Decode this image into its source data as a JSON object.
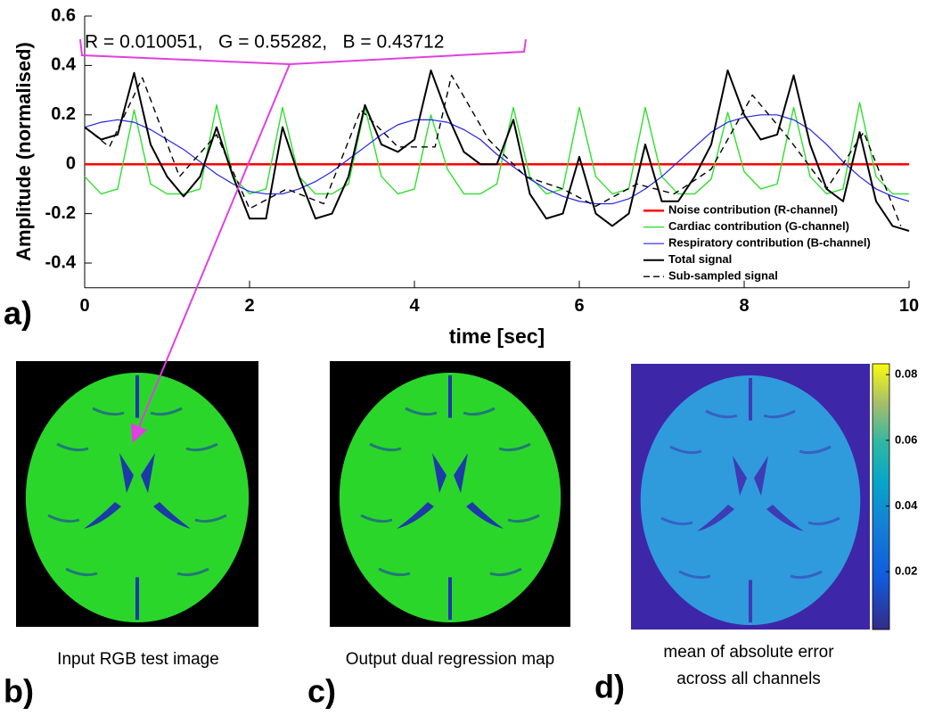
{
  "chart_data": {
    "type": "line",
    "annotation": "R = 0.010051,   G = 0.55282,   B = 0.43712",
    "panel_label": "a)",
    "x_label": "time [sec]",
    "y_label": "Amplitude (normalised)",
    "xlim": [
      0,
      10
    ],
    "xticks": [
      0,
      2,
      4,
      6,
      8,
      10
    ],
    "ylim": [
      -0.5,
      0.6
    ],
    "yticks": [
      -0.4,
      -0.2,
      0,
      0.2,
      0.4,
      0.6
    ],
    "legend": "lower right",
    "x": [
      0,
      0.2,
      0.4,
      0.6,
      0.8,
      1,
      1.2,
      1.4,
      1.6,
      1.8,
      2,
      2.2,
      2.4,
      2.6,
      2.8,
      3,
      3.2,
      3.4,
      3.6,
      3.8,
      4,
      4.2,
      4.4,
      4.6,
      4.8,
      5,
      5.2,
      5.4,
      5.6,
      5.8,
      6,
      6.2,
      6.4,
      6.6,
      6.8,
      7,
      7.2,
      7.4,
      7.6,
      7.8,
      8,
      8.2,
      8.4,
      8.6,
      8.8,
      9,
      9.2,
      9.4,
      9.6,
      9.8,
      10
    ],
    "series": [
      {
        "name": "Noise contribution (R-channel)",
        "color": "#ff0000",
        "width": 2.5,
        "values": [
          0,
          0,
          0,
          0,
          0,
          0,
          0,
          0,
          0,
          0,
          0,
          0,
          0,
          0,
          0,
          0,
          0,
          0,
          0,
          0,
          0,
          0,
          0,
          0,
          0,
          0,
          0,
          0,
          0,
          0,
          0,
          0,
          0,
          0,
          0,
          0,
          0,
          0,
          0,
          0,
          0,
          0,
          0,
          0,
          0,
          0,
          0,
          0,
          0,
          0,
          0
        ]
      },
      {
        "name": "Cardiac contribution (G-channel)",
        "color": "#2ee02e",
        "width": 1.4,
        "values": [
          -0.05,
          -0.12,
          -0.1,
          0.22,
          -0.08,
          -0.12,
          -0.12,
          -0.1,
          0.24,
          -0.05,
          -0.12,
          -0.1,
          0.23,
          -0.05,
          -0.12,
          -0.12,
          -0.08,
          0.23,
          -0.05,
          -0.12,
          -0.1,
          0.2,
          -0.02,
          -0.12,
          -0.12,
          -0.08,
          0.23,
          -0.05,
          -0.12,
          -0.1,
          0.23,
          -0.05,
          -0.12,
          -0.1,
          0.23,
          -0.05,
          -0.12,
          -0.12,
          -0.06,
          0.21,
          -0.03,
          -0.1,
          -0.08,
          0.23,
          -0.05,
          -0.12,
          -0.1,
          0.25,
          -0.05,
          -0.12,
          -0.12
        ]
      },
      {
        "name": "Respiratory contribution (B-channel)",
        "color": "#2222ee",
        "width": 1.2,
        "values": [
          0.15,
          0.17,
          0.18,
          0.17,
          0.14,
          0.1,
          0.06,
          0.01,
          -0.04,
          -0.08,
          -0.11,
          -0.12,
          -0.12,
          -0.1,
          -0.07,
          -0.03,
          0.02,
          0.07,
          0.12,
          0.16,
          0.18,
          0.18,
          0.17,
          0.14,
          0.1,
          0.04,
          -0.01,
          -0.06,
          -0.1,
          -0.13,
          -0.15,
          -0.16,
          -0.16,
          -0.14,
          -0.1,
          -0.05,
          0.01,
          0.07,
          0.13,
          0.17,
          0.19,
          0.2,
          0.2,
          0.18,
          0.14,
          0.08,
          0.01,
          -0.05,
          -0.1,
          -0.13,
          -0.15
        ]
      },
      {
        "name": "Total signal",
        "color": "#000000",
        "width": 2,
        "values": [
          0.15,
          0.1,
          0.12,
          0.37,
          0.08,
          -0.05,
          -0.13,
          -0.05,
          0.15,
          -0.05,
          -0.22,
          -0.22,
          0.15,
          -0.05,
          -0.22,
          -0.2,
          -0.05,
          0.24,
          0.08,
          0.05,
          0.1,
          0.38,
          0.2,
          0.05,
          0,
          0,
          0.18,
          -0.12,
          -0.22,
          -0.2,
          0.03,
          -0.2,
          -0.25,
          -0.2,
          0.08,
          -0.15,
          -0.15,
          -0.05,
          0.08,
          0.38,
          0.2,
          0.1,
          0.12,
          0.36,
          0.08,
          -0.1,
          -0.15,
          0.13,
          -0.15,
          -0.25,
          -0.27
        ]
      },
      {
        "name": "Sub-sampled signal",
        "color": "#000000",
        "width": 1.4,
        "dashed": true,
        "x": [
          0,
          0.3,
          0.7,
          1.15,
          1.6,
          2,
          2.45,
          2.9,
          3.35,
          3.8,
          4.25,
          4.45,
          4.9,
          5.35,
          5.8,
          6.2,
          6.7,
          7.15,
          7.6,
          7.8,
          8.1,
          8.55,
          9,
          9.45,
          9.9
        ],
        "values": [
          0.15,
          0.07,
          0.35,
          -0.05,
          0.12,
          -0.18,
          -0.1,
          -0.16,
          0.22,
          0.07,
          0.07,
          0.36,
          0.1,
          -0.05,
          -0.1,
          -0.17,
          -0.08,
          -0.12,
          -0.02,
          0.1,
          0.28,
          0.1,
          -0.1,
          0.13,
          -0.25
        ]
      }
    ]
  },
  "panels": [
    {
      "label": "b)",
      "caption": [
        "Input RGB test image"
      ]
    },
    {
      "label": "c)",
      "caption": [
        "Output dual regression map"
      ]
    },
    {
      "label": "d)",
      "caption": [
        "mean of absolute error",
        "across all channels"
      ]
    }
  ],
  "colorbar": {
    "lim": [
      0.0024,
      0.0833
    ],
    "ticks": [
      0.02,
      0.04,
      0.06,
      0.08
    ]
  }
}
